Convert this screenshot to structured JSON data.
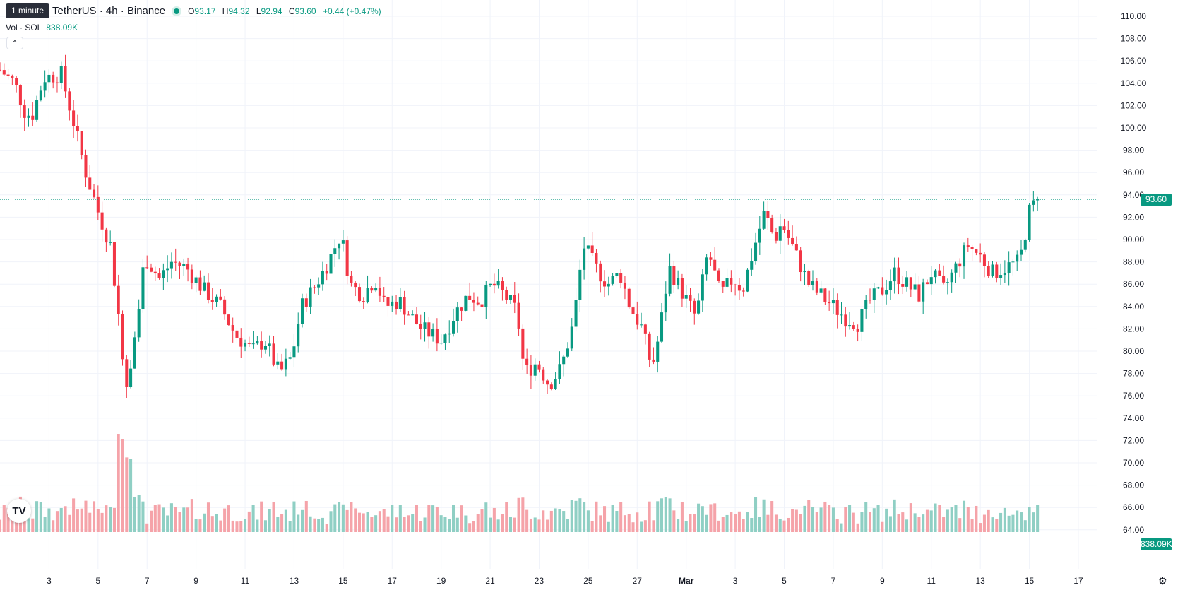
{
  "header": {
    "tooltip": "1 minute",
    "symbol": "TetherUS · 4h · Binance",
    "ohlc": [
      {
        "k": "O",
        "v": "93.17"
      },
      {
        "k": "H",
        "v": "94.32"
      },
      {
        "k": "L",
        "v": "92.94"
      },
      {
        "k": "C",
        "v": "93.60"
      }
    ],
    "change": "+0.44 (+0.47%)",
    "volume_label": "Vol · SOL",
    "volume_value": "838.09K",
    "collapse_icon": "chevron-up-icon"
  },
  "price_tag": "93.60",
  "volume_tag": "838.09K",
  "colors": {
    "up": "#089981",
    "down": "#f23645",
    "up_vol": "#8fcfc4",
    "down_vol": "#f5a3a9",
    "grid": "#f0f3fa",
    "text": "#131722"
  },
  "chart_data": {
    "type": "candlestick",
    "interval": "4h",
    "y_axis_ticks": [
      "110.00",
      "108.00",
      "106.00",
      "104.00",
      "102.00",
      "100.00",
      "98.00",
      "96.00",
      "94.00",
      "92.00",
      "90.00",
      "88.00",
      "86.00",
      "84.00",
      "82.00",
      "80.00",
      "78.00",
      "76.00",
      "74.00",
      "72.00",
      "70.00",
      "68.00",
      "66.00",
      "64.00"
    ],
    "ylim": [
      63,
      111
    ],
    "last_price": 93.6,
    "x_axis_labels": [
      "3",
      "5",
      "7",
      "9",
      "11",
      "13",
      "15",
      "17",
      "19",
      "21",
      "23",
      "25",
      "27",
      "Mar",
      "3",
      "5",
      "7",
      "9",
      "11",
      "13",
      "15",
      "17"
    ],
    "x_axis_label_days": [
      2,
      4,
      6,
      8,
      10,
      12,
      14,
      16,
      18,
      20,
      22,
      24,
      26,
      28,
      30,
      32,
      34,
      36,
      38,
      40,
      42,
      44
    ],
    "days_shown": [
      0,
      44.75
    ],
    "waypoints": [
      [
        0,
        105.2
      ],
      [
        0.6,
        104.0
      ],
      [
        1.0,
        101.5
      ],
      [
        1.3,
        101.0
      ],
      [
        1.8,
        104.5
      ],
      [
        2.5,
        104.8
      ],
      [
        3.0,
        100.5
      ],
      [
        3.5,
        96.0
      ],
      [
        4.0,
        92.5
      ],
      [
        4.5,
        89.5
      ],
      [
        4.9,
        82.0
      ],
      [
        5.15,
        77.0
      ],
      [
        5.6,
        82.5
      ],
      [
        5.9,
        88.5
      ],
      [
        6.5,
        86.5
      ],
      [
        7.0,
        88.0
      ],
      [
        7.6,
        87.5
      ],
      [
        8.3,
        85.5
      ],
      [
        9.0,
        84.0
      ],
      [
        9.6,
        81.5
      ],
      [
        10.3,
        80.0
      ],
      [
        10.8,
        81.0
      ],
      [
        11.4,
        78.0
      ],
      [
        11.9,
        79.5
      ],
      [
        12.3,
        84.0
      ],
      [
        12.9,
        86.0
      ],
      [
        13.4,
        88.0
      ],
      [
        13.9,
        90.5
      ],
      [
        14.3,
        86.0
      ],
      [
        14.8,
        85.0
      ],
      [
        15.3,
        86.5
      ],
      [
        15.7,
        84.0
      ],
      [
        16.3,
        84.5
      ],
      [
        16.8,
        83.0
      ],
      [
        17.2,
        82.0
      ],
      [
        17.6,
        81.5
      ],
      [
        18.0,
        81.0
      ],
      [
        18.6,
        83.5
      ],
      [
        19.1,
        85.0
      ],
      [
        19.6,
        84.5
      ],
      [
        20.1,
        86.0
      ],
      [
        20.6,
        85.0
      ],
      [
        21.1,
        83.5
      ],
      [
        21.4,
        78.0
      ],
      [
        21.9,
        79.0
      ],
      [
        22.4,
        77.0
      ],
      [
        22.9,
        78.5
      ],
      [
        23.4,
        82.5
      ],
      [
        23.8,
        89.5
      ],
      [
        24.3,
        87.5
      ],
      [
        24.8,
        86.0
      ],
      [
        25.3,
        87.0
      ],
      [
        25.7,
        84.0
      ],
      [
        26.2,
        82.0
      ],
      [
        26.6,
        78.5
      ],
      [
        26.9,
        81.5
      ],
      [
        27.3,
        87.5
      ],
      [
        27.9,
        85.0
      ],
      [
        28.4,
        83.0
      ],
      [
        28.9,
        89.0
      ],
      [
        29.4,
        85.0
      ],
      [
        29.9,
        86.5
      ],
      [
        30.3,
        85.5
      ],
      [
        30.8,
        89.5
      ],
      [
        31.2,
        92.5
      ],
      [
        31.6,
        90.0
      ],
      [
        31.9,
        91.5
      ],
      [
        32.4,
        89.0
      ],
      [
        33.0,
        86.0
      ],
      [
        33.5,
        85.0
      ],
      [
        34.0,
        84.0
      ],
      [
        34.5,
        83.0
      ],
      [
        35.0,
        82.5
      ],
      [
        35.5,
        84.5
      ],
      [
        36.0,
        85.5
      ],
      [
        36.5,
        87.0
      ],
      [
        37.0,
        86.0
      ],
      [
        37.5,
        85.0
      ],
      [
        38.0,
        87.0
      ],
      [
        38.5,
        85.5
      ],
      [
        39.0,
        87.5
      ],
      [
        39.5,
        89.5
      ],
      [
        40.0,
        88.5
      ],
      [
        40.5,
        87.0
      ],
      [
        41.0,
        87.5
      ],
      [
        41.6,
        88.0
      ],
      [
        42.0,
        92.5
      ],
      [
        42.2,
        93.2
      ],
      [
        42.35,
        93.6
      ]
    ]
  }
}
